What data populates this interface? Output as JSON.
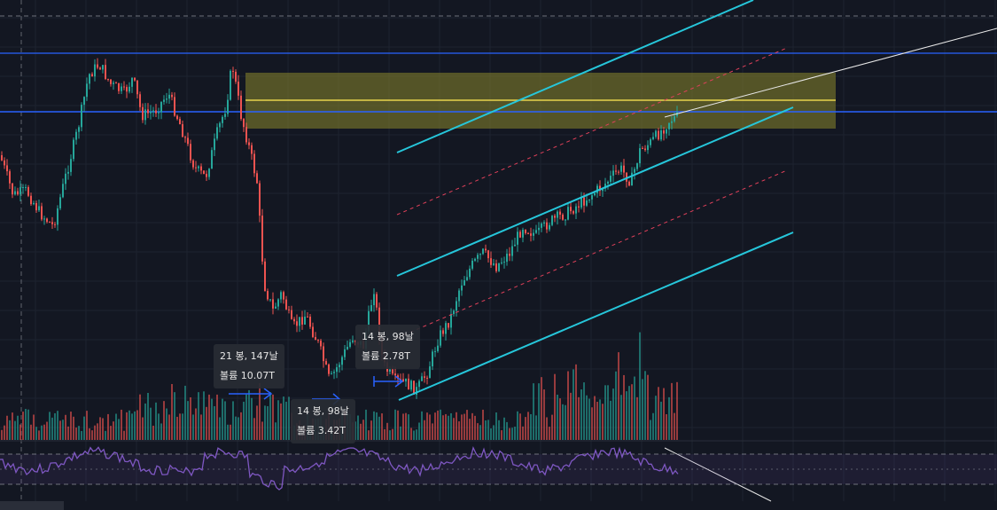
{
  "chart_data": {
    "type": "candlestick",
    "title": "",
    "colors": {
      "background": "#131722",
      "candle_up": "#26a69a",
      "candle_down": "#ef5350",
      "horizontal_levels": "#2962ff",
      "zone_fill": "#7d7a2a",
      "zone_mid_line": "#e8d44d",
      "channel_main": "#26c6da",
      "channel_dashed": "#e0405a",
      "trend_line": "#e8e8e8",
      "rsi_line": "#7e57c2",
      "measure_arrow": "#2962ff"
    },
    "measure_labels": [
      {
        "bars": "21 봉, 147날",
        "volume": "볼륨 10.07T"
      },
      {
        "bars": "14 봉, 98날",
        "volume": "볼륨 3.42T"
      },
      {
        "bars": "14 봉, 98날",
        "volume": "볼륨 2.78T"
      }
    ]
  }
}
